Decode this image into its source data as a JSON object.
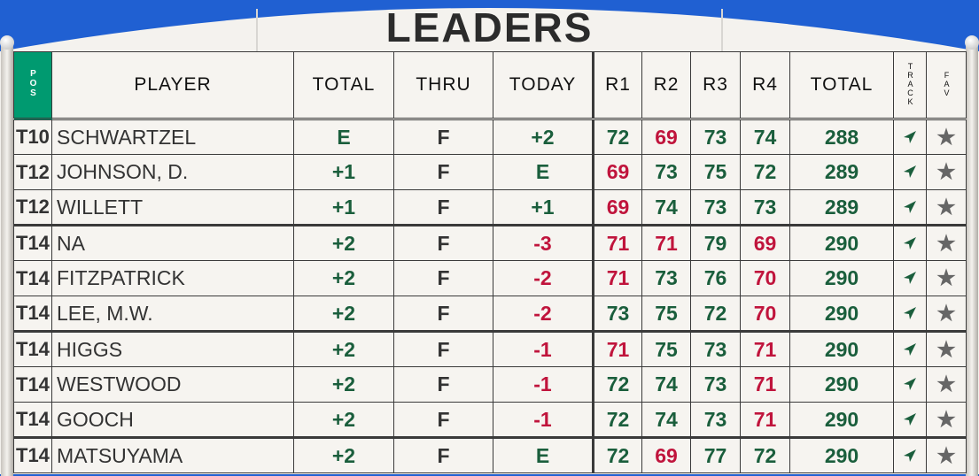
{
  "title": "LEADERS",
  "colors": {
    "under_par": "#c0143c",
    "par_or_over": "#1a5e3c",
    "pos_header": "#009a70",
    "sky": "#2060d2"
  },
  "headers": {
    "pos": "POS",
    "player": "PLAYER",
    "total": "TOTAL",
    "thru": "THRU",
    "today": "TODAY",
    "r1": "R1",
    "r2": "R2",
    "r3": "R3",
    "r4": "R4",
    "total_strokes": "TOTAL",
    "track": "TRACK",
    "fav": "FAV"
  },
  "rows": [
    {
      "pos": "T10",
      "player": "SCHWARTZEL",
      "total": "E",
      "thru": "F",
      "today": "+2",
      "r1": "72",
      "r2": "69",
      "r3": "73",
      "r4": "74",
      "strokes": "288"
    },
    {
      "pos": "T12",
      "player": "JOHNSON, D.",
      "total": "+1",
      "thru": "F",
      "today": "E",
      "r1": "69",
      "r2": "73",
      "r3": "75",
      "r4": "72",
      "strokes": "289"
    },
    {
      "pos": "T12",
      "player": "WILLETT",
      "total": "+1",
      "thru": "F",
      "today": "+1",
      "r1": "69",
      "r2": "74",
      "r3": "73",
      "r4": "73",
      "strokes": "289"
    },
    {
      "pos": "T14",
      "player": "NA",
      "total": "+2",
      "thru": "F",
      "today": "-3",
      "r1": "71",
      "r2": "71",
      "r3": "79",
      "r4": "69",
      "strokes": "290"
    },
    {
      "pos": "T14",
      "player": "FITZPATRICK",
      "total": "+2",
      "thru": "F",
      "today": "-2",
      "r1": "71",
      "r2": "73",
      "r3": "76",
      "r4": "70",
      "strokes": "290"
    },
    {
      "pos": "T14",
      "player": "LEE, M.W.",
      "total": "+2",
      "thru": "F",
      "today": "-2",
      "r1": "73",
      "r2": "75",
      "r3": "72",
      "r4": "70",
      "strokes": "290"
    },
    {
      "pos": "T14",
      "player": "HIGGS",
      "total": "+2",
      "thru": "F",
      "today": "-1",
      "r1": "71",
      "r2": "75",
      "r3": "73",
      "r4": "71",
      "strokes": "290"
    },
    {
      "pos": "T14",
      "player": "WESTWOOD",
      "total": "+2",
      "thru": "F",
      "today": "-1",
      "r1": "72",
      "r2": "74",
      "r3": "73",
      "r4": "71",
      "strokes": "290"
    },
    {
      "pos": "T14",
      "player": "GOOCH",
      "total": "+2",
      "thru": "F",
      "today": "-1",
      "r1": "72",
      "r2": "74",
      "r3": "73",
      "r4": "71",
      "strokes": "290"
    },
    {
      "pos": "T14",
      "player": "MATSUYAMA",
      "total": "+2",
      "thru": "F",
      "today": "E",
      "r1": "72",
      "r2": "69",
      "r3": "77",
      "r4": "72",
      "strokes": "290"
    }
  ]
}
